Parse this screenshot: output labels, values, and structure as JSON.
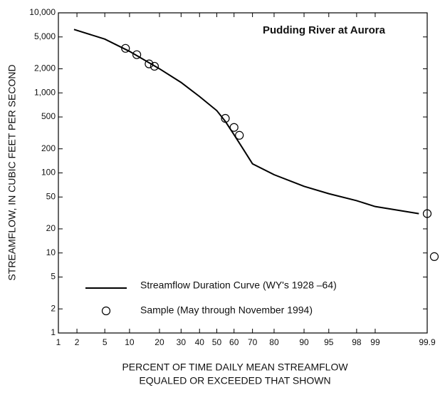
{
  "chart_data": {
    "type": "line",
    "title": "Pudding  River at Aurora",
    "xlabel": [
      "PERCENT OF TIME DAILY MEAN STREAMFLOW",
      "EQUALED OR EXCEEDED THAT SHOWN"
    ],
    "ylabel": "STREAMFLOW, IN CUBIC FEET PER SECOND",
    "x_scale": "probability",
    "y_scale": "log",
    "xlim": [
      1,
      99.9
    ],
    "ylim": [
      1,
      10000
    ],
    "xticks": [
      1,
      2,
      5,
      10,
      20,
      30,
      40,
      50,
      60,
      70,
      80,
      90,
      95,
      98,
      99,
      99.9
    ],
    "yticks": [
      1,
      2,
      5,
      10,
      20,
      50,
      100,
      200,
      500,
      {
        "value": 1000,
        "label": "1,000"
      },
      {
        "value": 2000,
        "label": "2,000"
      },
      {
        "value": 5000,
        "label": "5,000"
      },
      {
        "value": 10000,
        "label": "10,000"
      }
    ],
    "legend": "lower left",
    "series": [
      {
        "name": "Streamflow Duration Curve (WY's 1928 –64)",
        "color": "#000000",
        "style": "line",
        "x": [
          1.8,
          5,
          10,
          20,
          30,
          40,
          50,
          55,
          60,
          65,
          70,
          80,
          90,
          95,
          98,
          99,
          99.85
        ],
        "values": [
          6200,
          4700,
          3300,
          2000,
          1350,
          900,
          600,
          440,
          300,
          200,
          130,
          95,
          68,
          55,
          45,
          38,
          31
        ]
      },
      {
        "name": "Sample (May through November 1994)",
        "color": "#000000",
        "style": "circle",
        "x": [
          9,
          12,
          16,
          18,
          55,
          60,
          63,
          99.9,
          99.93
        ],
        "values": [
          3600,
          3000,
          2300,
          2150,
          480,
          370,
          295,
          31,
          9
        ]
      }
    ]
  }
}
